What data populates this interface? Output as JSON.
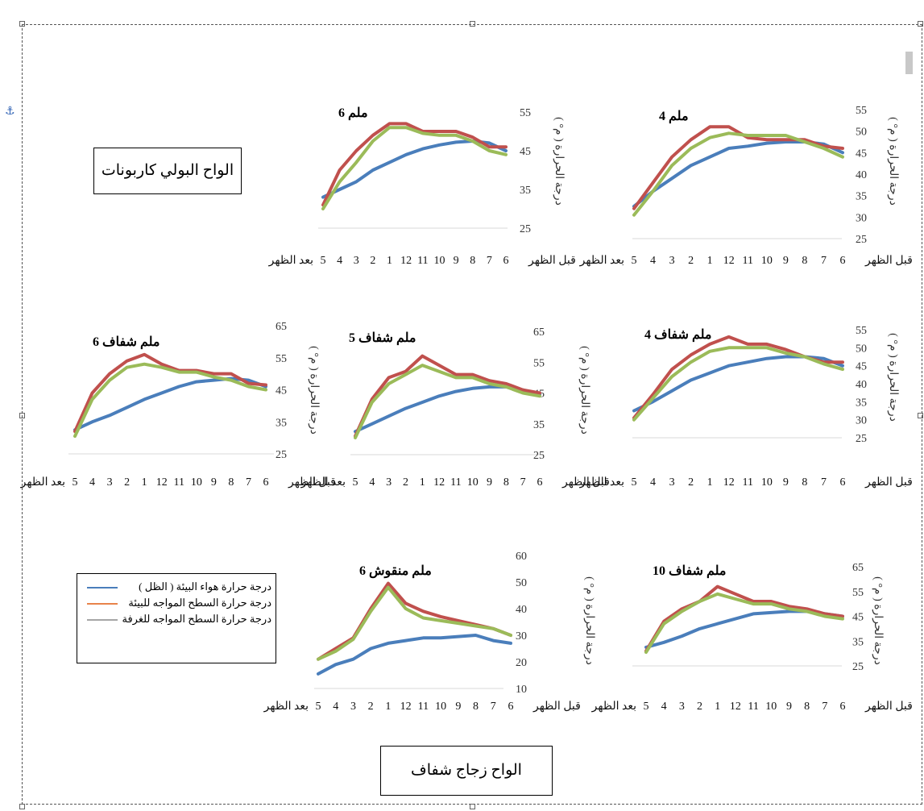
{
  "labels": {
    "polycarbonate": "الواح البولي كاربونات",
    "glass": "الواح زجاج شفاف"
  },
  "legend": [
    {
      "name": "درجة حرارة هواء البيئة ( الظل )",
      "color": "#4a7ebb"
    },
    {
      "name": "درجة حرارة السطح المواجه للبيئة",
      "color": "#e8834a"
    },
    {
      "name": "درجة حرارة السطح المواجه للغرفة",
      "color": "#a6a6a6"
    }
  ],
  "x_categories": [
    "6",
    "7",
    "8",
    "9",
    "10",
    "11",
    "12",
    "1",
    "2",
    "3",
    "4",
    "5"
  ],
  "x_first_label": "قبل الظهر",
  "x_last_label": "بعد الظهر",
  "ylabel": "درجة الحرارة ( م° )",
  "series_colors": {
    "air": "#4a7ebb",
    "outer": "#c0504d",
    "inner": "#9bbb59"
  },
  "chart_data": [
    {
      "type": "line",
      "title": "4 ملم",
      "ylim": [
        25,
        55
      ],
      "yticks": [
        25,
        30,
        35,
        40,
        45,
        50,
        55
      ],
      "series": [
        {
          "key": "air",
          "values": [
            45,
            47,
            47.5,
            47.5,
            47.2,
            46.5,
            46,
            44,
            42,
            39,
            36,
            32.5
          ]
        },
        {
          "key": "outer",
          "values": [
            46,
            46.5,
            48,
            48,
            48,
            48.5,
            51,
            51,
            48,
            44,
            38,
            32
          ]
        },
        {
          "key": "inner",
          "values": [
            44,
            46,
            47.5,
            49,
            49,
            49,
            49.5,
            48.5,
            46,
            42,
            36,
            30.5
          ]
        }
      ]
    },
    {
      "type": "line",
      "title": "6 ملم",
      "ylim": [
        25,
        55
      ],
      "yticks": [
        25,
        35,
        45,
        55
      ],
      "series": [
        {
          "key": "air",
          "values": [
            45,
            47,
            47.5,
            47.2,
            46.5,
            45.5,
            44,
            42,
            40,
            37,
            35,
            33
          ]
        },
        {
          "key": "outer",
          "values": [
            46,
            46,
            48.5,
            50,
            50,
            50,
            52,
            52,
            49,
            45,
            40,
            31
          ]
        },
        {
          "key": "inner",
          "values": [
            44,
            45,
            47.5,
            49,
            49,
            49.5,
            51,
            51,
            47.5,
            42,
            37,
            30
          ]
        }
      ]
    },
    {
      "type": "line",
      "title": "4 ملم شفاف",
      "ylim": [
        25,
        55
      ],
      "yticks": [
        25,
        30,
        35,
        40,
        45,
        50,
        55
      ],
      "series": [
        {
          "key": "air",
          "values": [
            45,
            47,
            47.5,
            47.5,
            47,
            46,
            45,
            43,
            41,
            38,
            35,
            32.5
          ]
        },
        {
          "key": "outer",
          "values": [
            46,
            46,
            47.5,
            49.5,
            51,
            51,
            53,
            51,
            48,
            44,
            37,
            30.5
          ]
        },
        {
          "key": "inner",
          "values": [
            44,
            45.5,
            47.5,
            48.5,
            50,
            50,
            50,
            49,
            46,
            42,
            36,
            30
          ]
        }
      ]
    },
    {
      "type": "line",
      "title": "5 ملم شفاف",
      "ylim": [
        25,
        65
      ],
      "yticks": [
        25,
        35,
        45,
        55,
        65
      ],
      "series": [
        {
          "key": "air",
          "values": [
            44.5,
            46,
            47,
            47,
            46.5,
            45.5,
            44,
            42,
            40,
            37.5,
            35,
            32.5
          ]
        },
        {
          "key": "outer",
          "values": [
            45,
            46,
            48,
            49,
            51,
            51,
            54,
            57,
            52,
            50,
            43,
            31
          ]
        },
        {
          "key": "inner",
          "values": [
            44,
            45,
            47,
            48,
            50,
            50,
            52,
            54,
            51,
            48,
            42,
            30.5
          ]
        }
      ]
    },
    {
      "type": "line",
      "title": "6 ملم شفاف",
      "ylim": [
        25,
        65
      ],
      "yticks": [
        25,
        35,
        45,
        55,
        65
      ],
      "series": [
        {
          "key": "air",
          "values": [
            46,
            48,
            48.5,
            48,
            47.5,
            46,
            44,
            42,
            39.5,
            37,
            35,
            32.5
          ]
        },
        {
          "key": "outer",
          "values": [
            46.5,
            47,
            50,
            50,
            51,
            51,
            53,
            56,
            54,
            50,
            44,
            32
          ]
        },
        {
          "key": "inner",
          "values": [
            45,
            46,
            48,
            49,
            50.5,
            50.5,
            52,
            53,
            52,
            48,
            42,
            30.5
          ]
        }
      ]
    },
    {
      "type": "line",
      "title": "10 ملم شفاف",
      "ylim": [
        25,
        65
      ],
      "yticks": [
        25,
        35,
        45,
        55,
        65
      ],
      "series": [
        {
          "key": "air",
          "values": [
            45,
            46,
            47,
            47,
            46.5,
            46,
            44,
            42,
            40,
            37,
            34.5,
            32.5
          ]
        },
        {
          "key": "outer",
          "values": [
            45,
            46,
            48,
            49,
            51,
            51,
            54,
            57,
            51,
            48,
            43,
            31
          ]
        },
        {
          "key": "inner",
          "values": [
            44,
            45,
            47,
            48,
            50,
            50,
            52,
            54,
            51,
            47,
            42,
            30.5
          ]
        }
      ]
    },
    {
      "type": "line",
      "title": "6 ملم منقوش",
      "ylim": [
        10,
        60
      ],
      "yticks": [
        10,
        20,
        30,
        40,
        50,
        60
      ],
      "series": [
        {
          "key": "air",
          "values": [
            27,
            28,
            30,
            29.5,
            29,
            29,
            28,
            27,
            25,
            21,
            19,
            15.5
          ]
        },
        {
          "key": "outer",
          "values": [
            30,
            32.5,
            34,
            35.5,
            37,
            39,
            42,
            49.5,
            40,
            29,
            25,
            21
          ]
        },
        {
          "key": "inner",
          "values": [
            30,
            32.5,
            33.5,
            34.5,
            35.5,
            36.5,
            40,
            48,
            39,
            28.5,
            24,
            21
          ]
        }
      ]
    }
  ]
}
